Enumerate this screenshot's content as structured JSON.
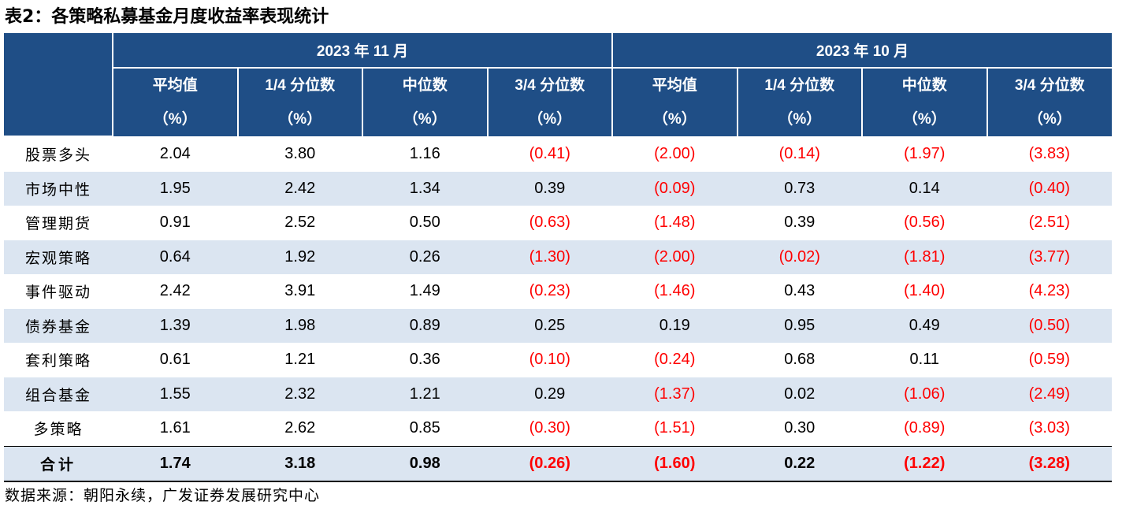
{
  "title": "表2：各策略私募基金月度收益率表现统计",
  "header": {
    "group1": "2023 年 11 月",
    "group2": "2023 年 10 月",
    "columns": [
      {
        "label": "平均值",
        "unit": "（%）"
      },
      {
        "label": "1/4 分位数",
        "unit": "（%）"
      },
      {
        "label": "中位数",
        "unit": "（%）"
      },
      {
        "label": "3/4 分位数",
        "unit": "（%）"
      },
      {
        "label": "平均值",
        "unit": "（%）"
      },
      {
        "label": "1/4 分位数",
        "unit": "（%）"
      },
      {
        "label": "中位数",
        "unit": "（%）"
      },
      {
        "label": "3/4 分位数",
        "unit": "（%）"
      }
    ]
  },
  "rows": [
    {
      "label": "股票多头",
      "values": [
        "2.04",
        "3.80",
        "1.16",
        "(0.41)",
        "(2.00)",
        "(0.14)",
        "(1.97)",
        "(3.83)"
      ]
    },
    {
      "label": "市场中性",
      "values": [
        "1.95",
        "2.42",
        "1.34",
        "0.39",
        "(0.09)",
        "0.73",
        "0.14",
        "(0.40)"
      ]
    },
    {
      "label": "管理期货",
      "values": [
        "0.91",
        "2.52",
        "0.50",
        "(0.63)",
        "(1.48)",
        "0.39",
        "(0.56)",
        "(2.51)"
      ]
    },
    {
      "label": "宏观策略",
      "values": [
        "0.64",
        "1.92",
        "0.26",
        "(1.30)",
        "(2.00)",
        "(0.02)",
        "(1.81)",
        "(3.77)"
      ]
    },
    {
      "label": "事件驱动",
      "values": [
        "2.42",
        "3.91",
        "1.49",
        "(0.23)",
        "(1.46)",
        "0.43",
        "(1.40)",
        "(4.23)"
      ]
    },
    {
      "label": "债券基金",
      "values": [
        "1.39",
        "1.98",
        "0.89",
        "0.25",
        "0.19",
        "0.95",
        "0.49",
        "(0.50)"
      ]
    },
    {
      "label": "套利策略",
      "values": [
        "0.61",
        "1.21",
        "0.36",
        "(0.10)",
        "(0.24)",
        "0.68",
        "0.11",
        "(0.59)"
      ]
    },
    {
      "label": "组合基金",
      "values": [
        "1.55",
        "2.32",
        "1.21",
        "0.29",
        "(1.37)",
        "0.02",
        "(1.06)",
        "(2.49)"
      ]
    },
    {
      "label": "多策略",
      "values": [
        "1.61",
        "2.62",
        "0.85",
        "(0.30)",
        "(1.51)",
        "0.30",
        "(0.89)",
        "(3.03)"
      ]
    }
  ],
  "total": {
    "label": "合计",
    "values": [
      "1.74",
      "3.18",
      "0.98",
      "(0.26)",
      "(1.60)",
      "0.22",
      "(1.22)",
      "(3.28)"
    ]
  },
  "source": "数据来源：朝阳永续，广发证券发展研究中心",
  "colors": {
    "header_bg": "#1f4e86",
    "stripe_bg": "#dbe5f1",
    "negative": "#ff0000"
  }
}
